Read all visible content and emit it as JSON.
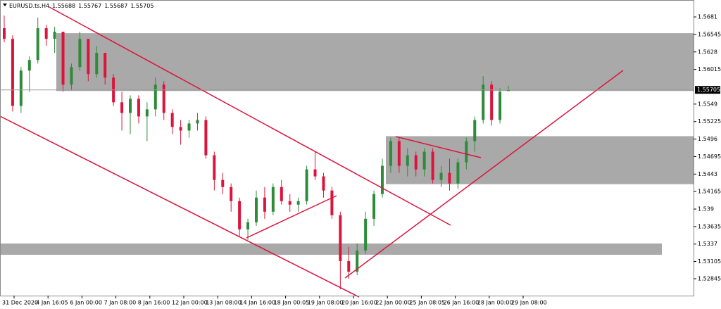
{
  "chart_data": {
    "type": "candlestick",
    "title": "EURUSD.ts.H4",
    "header_ohlc": [
      1.55688,
      1.55767,
      1.55687,
      1.55705
    ],
    "last_price": 1.55705,
    "bull_color": "#2e8b3a",
    "bear_color": "#dc143c",
    "zone_color": "#a9a9a9",
    "ylim": [
      1.52589,
      1.57013
    ],
    "yticks": [
      1.5681,
      1.56545,
      1.5628,
      1.56015,
      1.5549,
      1.55225,
      1.5496,
      1.54695,
      1.5443,
      1.54165,
      1.539,
      1.53635,
      1.5337,
      1.53105,
      1.52845
    ],
    "time_labels": [
      "31 Dec 2020",
      "4 Jan 16:05",
      "6 Jan 00:00",
      "7 Jan 08:00",
      "8 Jan 16:00",
      "12 Jan 00:00",
      "13 Jan 08:00",
      "14 Jan 16:00",
      "18 Jan 00:05",
      "19 Jan 08:00",
      "20 Jan 16:00",
      "22 Jan 00:00",
      "25 Jan 08:05",
      "26 Jan 16:00",
      "28 Jan 00:00",
      "29 Jan 08:00"
    ],
    "zones": [
      [
        1.56564,
        1.55688
      ],
      [
        1.55004,
        1.54277
      ],
      [
        1.53379,
        1.53208
      ]
    ],
    "open": [
      1.56639,
      1.56478,
      1.55463,
      1.55997,
      1.56158,
      1.56639,
      1.56478,
      1.56585,
      1.55784,
      1.56051,
      1.56478,
      1.55944,
      1.56265,
      1.55891,
      1.55517,
      1.55356,
      1.5557,
      1.55303,
      1.5541,
      1.55784,
      1.55356,
      1.55143,
      1.55089,
      1.55196,
      1.55249,
      1.54715,
      1.54341,
      1.54234,
      1.5402,
      1.53593,
      1.537,
      1.54074,
      1.5386,
      1.54234,
      1.5402,
      1.53967,
      1.5402,
      1.54501,
      1.54395,
      1.54181,
      1.53807,
      1.53112,
      1.52952,
      1.53272,
      1.53753,
      1.54127,
      1.54555,
      1.54929,
      1.54555,
      1.54715,
      1.54501,
      1.54769,
      1.54341,
      1.54448,
      1.54288,
      1.54608,
      1.54929,
      1.55249,
      1.55784,
      1.55249,
      1.55688
    ],
    "high": [
      1.56831,
      1.56532,
      1.56051,
      1.56211,
      1.56799,
      1.56692,
      1.5666,
      1.56585,
      1.56104,
      1.56585,
      1.56478,
      1.56371,
      1.56265,
      1.55944,
      1.55677,
      1.55623,
      1.55623,
      1.55517,
      1.55891,
      1.55837,
      1.5541,
      1.55249,
      1.55249,
      1.55356,
      1.55303,
      1.54769,
      1.54448,
      1.54288,
      1.54074,
      1.53753,
      1.54181,
      1.54234,
      1.54288,
      1.54341,
      1.54127,
      1.54074,
      1.54555,
      1.54769,
      1.54448,
      1.54234,
      1.5386,
      1.53326,
      1.53379,
      1.5386,
      1.54181,
      1.54662,
      1.54982,
      1.54982,
      1.54822,
      1.54769,
      1.54822,
      1.54822,
      1.54555,
      1.54662,
      1.54662,
      1.54982,
      1.55303,
      1.55912,
      1.55837,
      1.5573,
      1.55767
    ],
    "low": [
      1.56425,
      1.55378,
      1.55356,
      1.55677,
      1.56104,
      1.56371,
      1.56265,
      1.55677,
      1.55698,
      1.55997,
      1.55837,
      1.55891,
      1.55784,
      1.55463,
      1.55089,
      1.55036,
      1.55196,
      1.54929,
      1.55303,
      1.55249,
      1.55036,
      1.54875,
      1.54982,
      1.55089,
      1.54662,
      1.54181,
      1.54127,
      1.5386,
      1.53486,
      1.53433,
      1.53646,
      1.53753,
      1.53807,
      1.53967,
      1.5386,
      1.5386,
      1.53967,
      1.54341,
      1.54074,
      1.53753,
      1.52685,
      1.52845,
      1.52898,
      1.53219,
      1.53646,
      1.54074,
      1.54448,
      1.54448,
      1.54395,
      1.54395,
      1.54395,
      1.54288,
      1.54234,
      1.54181,
      1.54202,
      1.54501,
      1.54769,
      1.55196,
      1.55164,
      1.55196,
      1.55687
    ],
    "close": [
      1.56478,
      1.55463,
      1.55997,
      1.56158,
      1.56639,
      1.56478,
      1.56585,
      1.55784,
      1.56051,
      1.56478,
      1.55944,
      1.56265,
      1.55891,
      1.55517,
      1.55356,
      1.5557,
      1.55303,
      1.5541,
      1.55784,
      1.55356,
      1.55143,
      1.55089,
      1.55196,
      1.55249,
      1.54715,
      1.54341,
      1.54234,
      1.5402,
      1.53593,
      1.537,
      1.54074,
      1.5386,
      1.54234,
      1.5402,
      1.53967,
      1.5402,
      1.54501,
      1.54395,
      1.54181,
      1.53807,
      1.53112,
      1.52952,
      1.53272,
      1.53753,
      1.54127,
      1.54555,
      1.54929,
      1.54555,
      1.54715,
      1.54501,
      1.54769,
      1.54341,
      1.54448,
      1.54288,
      1.54608,
      1.54929,
      1.55249,
      1.55784,
      1.55249,
      1.55677,
      1.55705
    ]
  }
}
